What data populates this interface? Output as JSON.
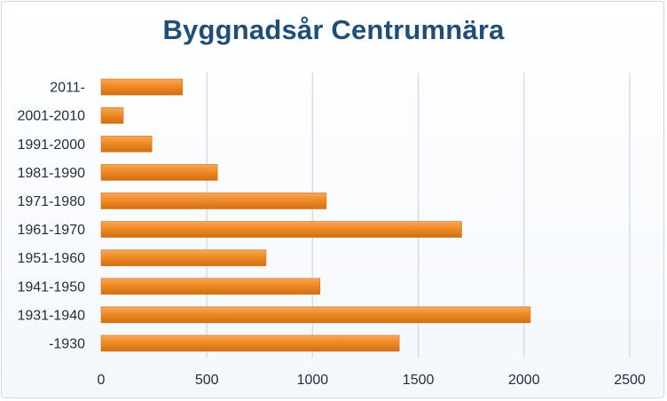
{
  "chart_data": {
    "type": "bar",
    "orientation": "horizontal",
    "title": "Byggnadsår Centrumnära",
    "xlabel": "",
    "ylabel": "",
    "categories": [
      "2011-",
      "2001-2010",
      "1991-2000",
      "1981-1990",
      "1971-1980",
      "1961-1970",
      "1951-1960",
      "1941-1950",
      "1931-1940",
      "-1930"
    ],
    "values": [
      385,
      105,
      240,
      550,
      1065,
      1705,
      780,
      1035,
      2030,
      1410
    ],
    "xlim": [
      0,
      2500
    ],
    "xticks": [
      0,
      500,
      1000,
      1500,
      2000,
      2500
    ],
    "grid": true,
    "legend": "none",
    "colors": {
      "bar": "#f08a24",
      "bar_dark": "#c96a12",
      "grid": "#d6dde8",
      "title": "#1f4e79",
      "tick_label": "#1f2d3d"
    }
  }
}
